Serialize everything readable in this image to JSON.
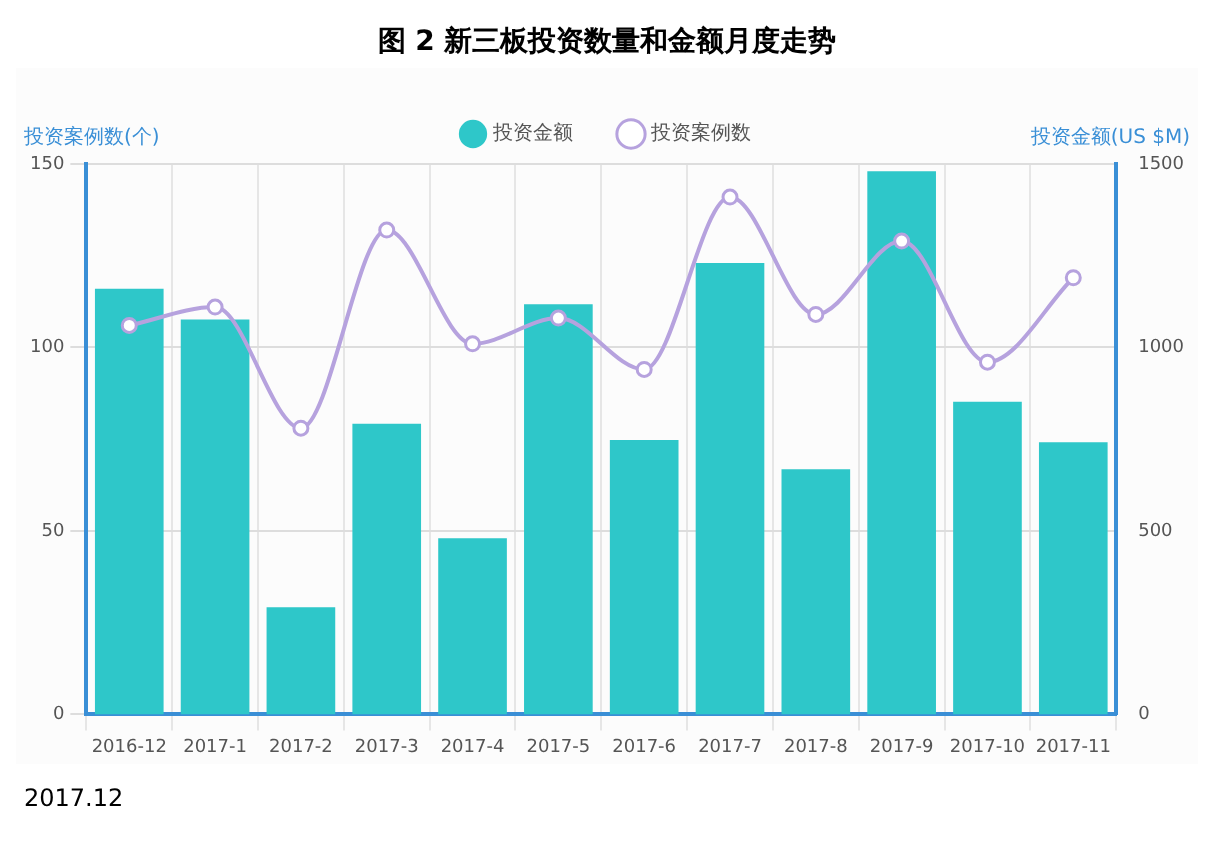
{
  "chart_data": {
    "type": "bar",
    "title": "图 2 新三板投资数量和金额月度走势",
    "categories": [
      "2016-12",
      "2017-1",
      "2017-2",
      "2017-3",
      "2017-4",
      "2017-5",
      "2017-6",
      "2017-7",
      "2017-8",
      "2017-9",
      "2017-10",
      "2017-11"
    ],
    "series": [
      {
        "name": "投资金额",
        "axis": "y2",
        "color": "#2ec7c9",
        "values": [
          1160,
          1076,
          292,
          792,
          480,
          1118,
          748,
          1230,
          668,
          1480,
          852,
          742
        ]
      },
      {
        "name": "投资案例数",
        "type": "line",
        "axis": "y",
        "color": "#b6a2de",
        "values": [
          106,
          111,
          78,
          132,
          101,
          108,
          94,
          141,
          109,
          129,
          96,
          119
        ]
      }
    ],
    "ylabel": "投资案例数(个)",
    "y2label": "投资金额(US $M)",
    "ylim": [
      0,
      150
    ],
    "yticks": [
      0,
      50,
      100,
      150
    ],
    "y2lim": [
      0,
      1500
    ],
    "y2ticks": [
      0,
      500,
      1000,
      1500
    ],
    "grid": true,
    "legend": "top",
    "marker": "circle",
    "line_style": "solid",
    "annotations": [
      "2017.12"
    ]
  }
}
